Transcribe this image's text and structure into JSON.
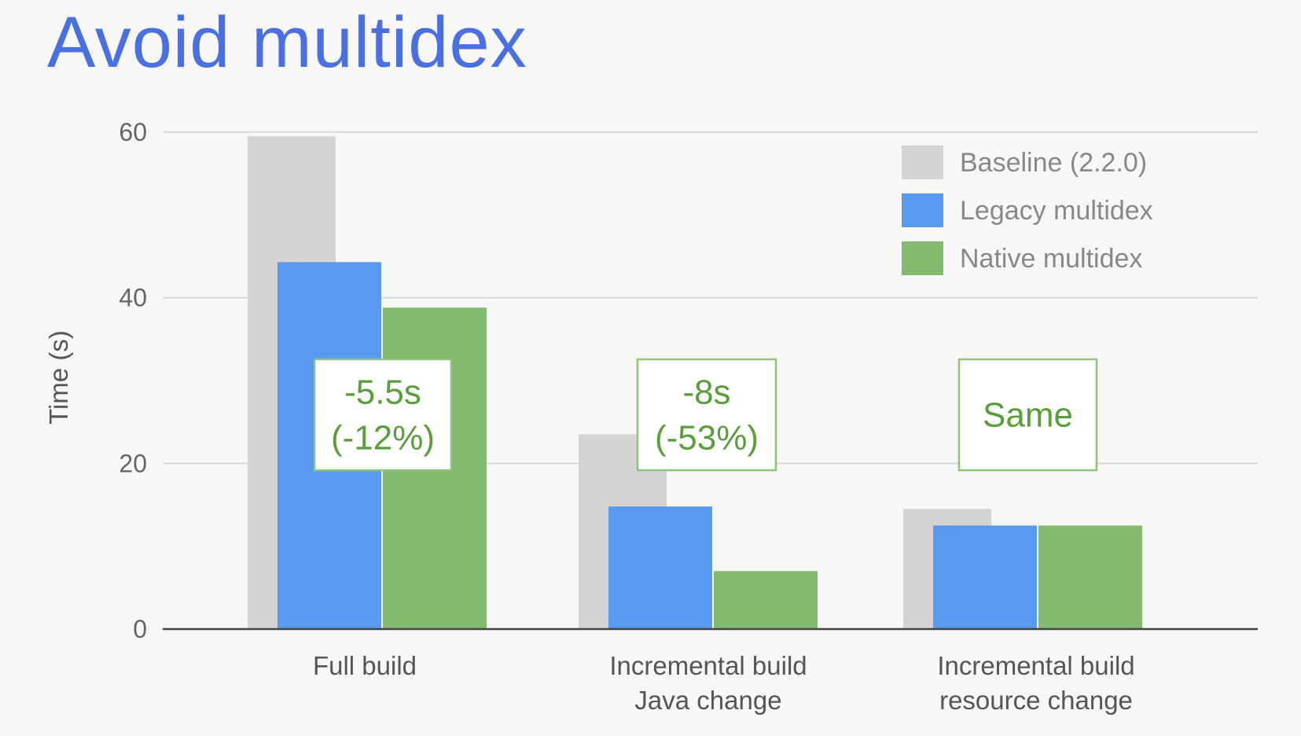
{
  "slide": {
    "title": "Avoid multidex"
  },
  "chart_data": {
    "type": "bar",
    "title": "",
    "ylabel": "Time (s)",
    "xlabel": "",
    "ylim": [
      0,
      60
    ],
    "yticks": [
      0,
      20,
      40,
      60
    ],
    "grid": true,
    "legend_position": "top-right",
    "categories": [
      [
        "Full build"
      ],
      [
        "Incremental build",
        "Java change"
      ],
      [
        "Incremental build",
        "resource change"
      ]
    ],
    "series": [
      {
        "name": "Baseline (2.2.0)",
        "color": "#d4d4d2",
        "values": [
          59.5,
          23.5,
          14.5
        ]
      },
      {
        "name": "Legacy multidex",
        "color": "#579af0",
        "values": [
          44.3,
          14.8,
          12.5
        ]
      },
      {
        "name": "Native multidex",
        "color": "#82ba6e",
        "values": [
          38.8,
          7,
          12.5
        ]
      }
    ],
    "annotations": [
      {
        "category_index": 0,
        "lines": [
          "-5.5s",
          "(-12%)"
        ]
      },
      {
        "category_index": 1,
        "lines": [
          "-8s",
          "(-53%)"
        ]
      },
      {
        "category_index": 2,
        "lines": [
          "Same"
        ]
      }
    ]
  }
}
